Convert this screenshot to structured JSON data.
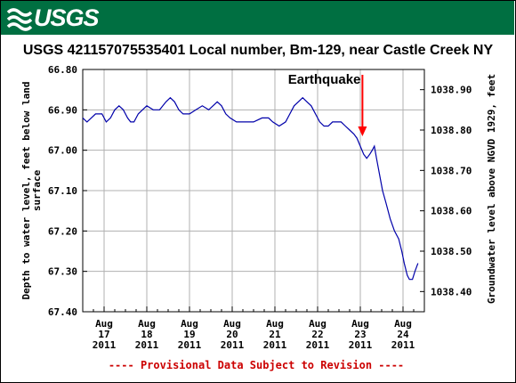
{
  "header": {
    "logo_text": "USGS"
  },
  "colors": {
    "banner": "#006f41",
    "series": "#0000aa",
    "grid": "#b0b0b0",
    "annotation": "#ff0000",
    "provisional": "#cc0000"
  },
  "chart_data": {
    "type": "line",
    "title": "USGS 421157075535401 Local number, Bm-129, near Castle Creek NY",
    "ylabel_left": "Depth to water level, feet below land surface",
    "ylabel_right": "Groundwater level above NGVD 1929, feet",
    "y_left_range": [
      66.8,
      67.4
    ],
    "y_left_inverted": true,
    "y_left_ticks": [
      "66.80",
      "66.90",
      "67.00",
      "67.10",
      "67.20",
      "67.30",
      "67.40"
    ],
    "y_right_range": [
      1038.95,
      1038.35
    ],
    "y_right_ticks": [
      "1038.90",
      "1038.80",
      "1038.70",
      "1038.60",
      "1038.50",
      "1038.40"
    ],
    "x_range": [
      16.5,
      24.5
    ],
    "x_ticks": [
      {
        "month": "Aug",
        "day": "17",
        "year": "2011"
      },
      {
        "month": "Aug",
        "day": "18",
        "year": "2011"
      },
      {
        "month": "Aug",
        "day": "19",
        "year": "2011"
      },
      {
        "month": "Aug",
        "day": "20",
        "year": "2011"
      },
      {
        "month": "Aug",
        "day": "21",
        "year": "2011"
      },
      {
        "month": "Aug",
        "day": "22",
        "year": "2011"
      },
      {
        "month": "Aug",
        "day": "23",
        "year": "2011"
      },
      {
        "month": "Aug",
        "day": "24",
        "year": "2011"
      }
    ],
    "grid": true,
    "annotation": {
      "text": "Earthquake",
      "x": 23.05
    },
    "footer": "---- Provisional Data Subject to Revision ----",
    "series": [
      {
        "points": [
          [
            16.5,
            66.92
          ],
          [
            16.6,
            66.93
          ],
          [
            16.7,
            66.92
          ],
          [
            16.8,
            66.91
          ],
          [
            16.95,
            66.91
          ],
          [
            17.05,
            66.93
          ],
          [
            17.15,
            66.92
          ],
          [
            17.25,
            66.9
          ],
          [
            17.35,
            66.89
          ],
          [
            17.45,
            66.9
          ],
          [
            17.55,
            66.92
          ],
          [
            17.62,
            66.93
          ],
          [
            17.7,
            66.93
          ],
          [
            17.8,
            66.91
          ],
          [
            17.9,
            66.9
          ],
          [
            18.0,
            66.89
          ],
          [
            18.15,
            66.9
          ],
          [
            18.3,
            66.9
          ],
          [
            18.45,
            66.88
          ],
          [
            18.55,
            66.87
          ],
          [
            18.65,
            66.88
          ],
          [
            18.75,
            66.9
          ],
          [
            18.85,
            66.91
          ],
          [
            19.0,
            66.91
          ],
          [
            19.15,
            66.9
          ],
          [
            19.3,
            66.89
          ],
          [
            19.45,
            66.9
          ],
          [
            19.55,
            66.89
          ],
          [
            19.65,
            66.88
          ],
          [
            19.75,
            66.89
          ],
          [
            19.85,
            66.91
          ],
          [
            19.95,
            66.92
          ],
          [
            20.1,
            66.93
          ],
          [
            20.3,
            66.93
          ],
          [
            20.5,
            66.93
          ],
          [
            20.7,
            66.92
          ],
          [
            20.85,
            66.92
          ],
          [
            20.95,
            66.93
          ],
          [
            21.1,
            66.94
          ],
          [
            21.25,
            66.93
          ],
          [
            21.35,
            66.91
          ],
          [
            21.45,
            66.89
          ],
          [
            21.55,
            66.88
          ],
          [
            21.65,
            66.87
          ],
          [
            21.75,
            66.88
          ],
          [
            21.85,
            66.89
          ],
          [
            21.95,
            66.91
          ],
          [
            22.05,
            66.93
          ],
          [
            22.15,
            66.94
          ],
          [
            22.25,
            66.94
          ],
          [
            22.35,
            66.93
          ],
          [
            22.45,
            66.93
          ],
          [
            22.55,
            66.93
          ],
          [
            22.65,
            66.94
          ],
          [
            22.75,
            66.95
          ],
          [
            22.85,
            66.96
          ],
          [
            22.92,
            66.97
          ],
          [
            23.0,
            66.99
          ],
          [
            23.08,
            67.01
          ],
          [
            23.15,
            67.02
          ],
          [
            23.22,
            67.01
          ],
          [
            23.28,
            67.0
          ],
          [
            23.33,
            66.99
          ],
          [
            23.38,
            67.02
          ],
          [
            23.45,
            67.06
          ],
          [
            23.52,
            67.1
          ],
          [
            23.6,
            67.13
          ],
          [
            23.7,
            67.17
          ],
          [
            23.8,
            67.2
          ],
          [
            23.9,
            67.22
          ],
          [
            23.97,
            67.25
          ],
          [
            24.03,
            67.28
          ],
          [
            24.1,
            67.31
          ],
          [
            24.15,
            67.32
          ],
          [
            24.22,
            67.32
          ],
          [
            24.28,
            67.3
          ],
          [
            24.35,
            67.28
          ]
        ]
      }
    ]
  }
}
